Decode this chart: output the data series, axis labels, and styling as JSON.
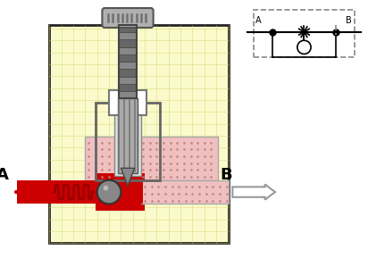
{
  "bg_color": "#ffffff",
  "yellow_bg": "#fafacc",
  "grid_color": "#d4d466",
  "red_fluid": "#cc0000",
  "pink_fluid": "#f0c0c0",
  "pink_dot": "#c08080",
  "gray_knob": "#aaaaaa",
  "gray_screw": "#888888",
  "gray_valve": "#999999",
  "gray_dark": "#555555",
  "gray_collar": "#cccccc",
  "body_border": "#222222",
  "note_A": "A",
  "note_B": "B"
}
